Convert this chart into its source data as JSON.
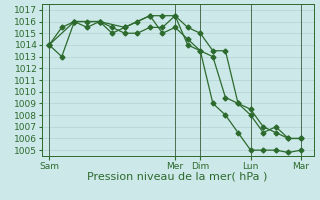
{
  "background_color": "#cce8e8",
  "grid_color": "#aacccc",
  "line_color": "#2d6a2d",
  "vline_color": "#3a5a3a",
  "x_ticks_labels": [
    "Sam",
    "Mer",
    "Dim",
    "Lun",
    "Mar"
  ],
  "x_ticks_pos": [
    0,
    5,
    6,
    8,
    10
  ],
  "series1_x": [
    0,
    0.5,
    1,
    1.5,
    2,
    2.5,
    3,
    3.5,
    4,
    4.5,
    5,
    5.5,
    6,
    6.5,
    7,
    7.5,
    8,
    8.5,
    9,
    9.5,
    10
  ],
  "series1_y": [
    1014,
    1013,
    1016,
    1015.5,
    1016,
    1015.5,
    1015,
    1015,
    1015.5,
    1015.5,
    1016.5,
    1015.5,
    1015,
    1013.5,
    1013.5,
    1009,
    1008.5,
    1007,
    1006.5,
    1006,
    1006
  ],
  "series2_x": [
    0,
    0.5,
    1,
    1.5,
    2,
    2.5,
    3,
    3.5,
    4,
    4.5,
    5,
    5.5,
    6,
    6.5,
    7,
    7.5,
    8,
    8.5,
    9,
    9.5,
    10
  ],
  "series2_y": [
    1014,
    1015.5,
    1016,
    1016,
    1016,
    1015,
    1015.5,
    1016,
    1016.5,
    1015,
    1015.5,
    1014.5,
    1013.5,
    1013,
    1009.5,
    1009,
    1008,
    1006.5,
    1007,
    1006,
    1006
  ],
  "series3_x": [
    0,
    1,
    2,
    3,
    4,
    4.5,
    5,
    5.5,
    6,
    6.5,
    7,
    7.5,
    8,
    8.5,
    9,
    9.5,
    10
  ],
  "series3_y": [
    1014,
    1016,
    1016,
    1015.5,
    1016.5,
    1016.5,
    1016.5,
    1014,
    1013.5,
    1009,
    1008,
    1006.5,
    1005,
    1005,
    1005,
    1004.8,
    1005
  ],
  "ylim": [
    1004.5,
    1017.5
  ],
  "yticks": [
    1005,
    1006,
    1007,
    1008,
    1009,
    1010,
    1011,
    1012,
    1013,
    1014,
    1015,
    1016,
    1017
  ],
  "xlim": [
    -0.3,
    10.5
  ],
  "xlabel": "Pression niveau de la mer( hPa )",
  "xlabel_fontsize": 8,
  "tick_fontsize": 6.5
}
